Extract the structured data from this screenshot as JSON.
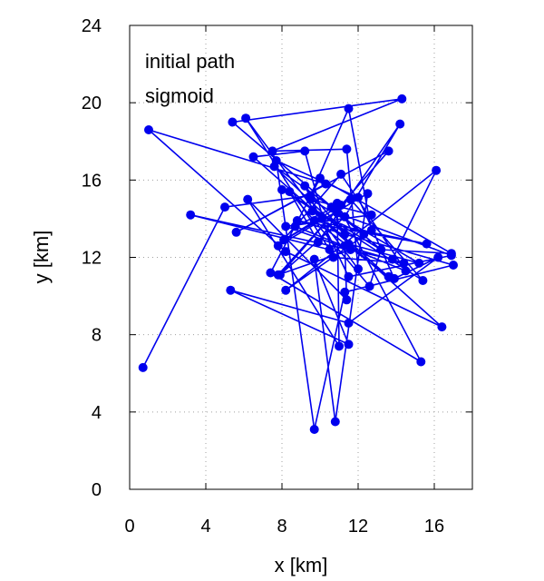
{
  "chart_data": {
    "type": "line",
    "title": "",
    "annotations": [
      "initial path",
      "sigmoid"
    ],
    "xlabel": "x [km]",
    "ylabel": "y [km]",
    "xlim": [
      0,
      18
    ],
    "ylim": [
      0,
      24
    ],
    "xticks": [
      0,
      4,
      8,
      12,
      16
    ],
    "yticks": [
      0,
      4,
      8,
      12,
      16,
      20,
      24
    ],
    "grid": true,
    "series": [
      {
        "color": "#0000ee",
        "marker": "circle",
        "x": [
          0.7,
          5.0,
          9.5,
          11.5,
          12.7,
          8.2,
          16.1,
          13.8,
          3.2,
          10.5,
          6.1,
          12.0,
          11.4,
          7.5,
          14.3,
          5.4,
          12.3,
          9.6,
          16.4,
          8.2,
          1.0,
          10.3,
          5.6,
          13.6,
          7.9,
          11.3,
          14.2,
          9.9,
          8.4,
          12.6,
          13.2,
          16.9,
          10.0,
          7.4,
          15.3,
          10.9,
          11.0,
          6.2,
          11.4,
          11.3,
          14.4,
          10.7,
          9.2,
          6.5,
          13.6,
          9.7,
          15.6,
          8.8,
          17.0,
          11.3,
          9.7,
          7.7,
          12.0,
          13.9,
          16.2,
          11.5,
          5.3,
          11.5,
          9.7,
          10.8,
          12.5,
          7.8,
          11.1,
          14.5,
          8.7,
          11.6,
          15.4,
          8.0,
          13.2,
          10.9,
          16.9,
          11.5,
          9.2,
          11.3,
          7.6,
          10.6,
          11.5,
          15.2,
          9.5,
          12.7,
          8.2,
          11.6,
          7.8,
          11.1,
          8.1,
          10.1
        ],
        "y": [
          6.3,
          14.6,
          15.2,
          19.7,
          13.4,
          10.3,
          16.5,
          11.9,
          14.2,
          12.4,
          19.2,
          11.4,
          17.6,
          17.5,
          20.2,
          19.0,
          13.2,
          14.4,
          8.4,
          12.3,
          18.6,
          15.8,
          13.3,
          17.5,
          11.1,
          14.1,
          18.9,
          12.8,
          15.4,
          10.5,
          12.4,
          12.2,
          16.1,
          11.2,
          6.6,
          14.8,
          7.4,
          15.0,
          9.8,
          12.6,
          11.7,
          12.0,
          17.5,
          17.2,
          11.0,
          13.9,
          12.7,
          13.9,
          11.6,
          10.2,
          3.1,
          17.0,
          15.1,
          10.9,
          12.0,
          8.6,
          10.3,
          7.5,
          11.9,
          3.5,
          15.3,
          12.6,
          16.3,
          11.3,
          13.6,
          15.0,
          10.8,
          15.5,
          12.4,
          14.3,
          12.1,
          11.0,
          15.7,
          13.2,
          16.7,
          14.6,
          12.7,
          11.7,
          15.0,
          14.2,
          13.6,
          12.4,
          11.1,
          14.7,
          12.9,
          14.0
        ]
      }
    ]
  }
}
